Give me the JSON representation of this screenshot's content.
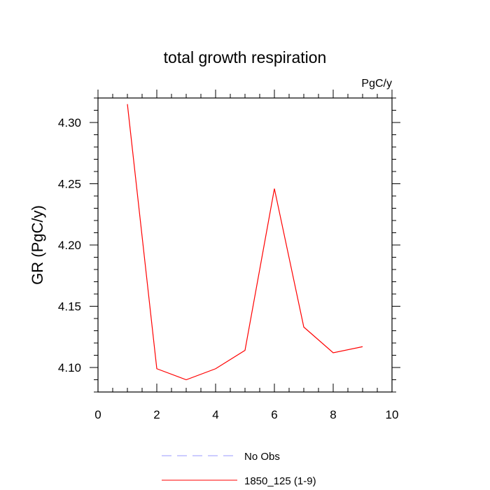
{
  "chart_data": {
    "type": "line",
    "title": "total growth respiration",
    "units_label": "PgC/y",
    "xlabel": "",
    "ylabel": "GR  (PgC/y)",
    "xlim": [
      0,
      10
    ],
    "ylim": [
      4.08,
      4.32
    ],
    "x_ticks": [
      0,
      2,
      4,
      6,
      8,
      10
    ],
    "x_tick_labels": [
      "0",
      "2",
      "4",
      "6",
      "8",
      "10"
    ],
    "y_ticks": [
      4.1,
      4.15,
      4.2,
      4.25,
      4.3
    ],
    "y_tick_labels": [
      "4.10",
      "4.15",
      "4.20",
      "4.25",
      "4.30"
    ],
    "grid": false,
    "series": [
      {
        "name": "1850_125 (1-9)",
        "color": "#ff0000",
        "dash": "solid",
        "x": [
          1,
          2,
          3,
          4,
          5,
          6,
          7,
          8,
          9
        ],
        "y": [
          4.315,
          4.099,
          4.09,
          4.099,
          4.114,
          4.246,
          4.133,
          4.112,
          4.117
        ]
      }
    ],
    "legend": {
      "placement": "bottom-center",
      "entries": [
        {
          "label": "No Obs",
          "color": "#9999ff",
          "dash": "dashed"
        },
        {
          "label": "1850_125 (1-9)",
          "color": "#ff0000",
          "dash": "solid"
        }
      ]
    }
  }
}
